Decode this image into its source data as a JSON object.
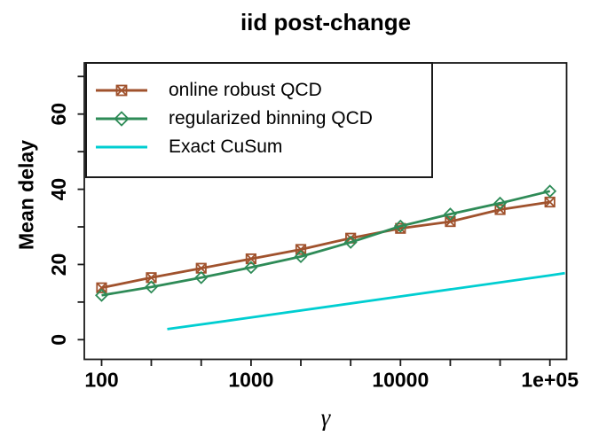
{
  "title": "iid post-change",
  "axes": {
    "x": {
      "label": "γ",
      "scale": "log",
      "ticks": [
        100,
        215,
        464,
        1000,
        2154,
        4642,
        10000,
        21544,
        46416,
        100000
      ],
      "tick_labels": [
        "100",
        "1000",
        "10000",
        "1e+05"
      ],
      "labeled_tick_indices": [
        0,
        3,
        6,
        9
      ]
    },
    "y": {
      "label": "Mean delay",
      "ticks": [
        0,
        10,
        20,
        30,
        40,
        50,
        60,
        70
      ],
      "tick_labels": [
        "0",
        "20",
        "40",
        "60"
      ],
      "labeled_tick_values": [
        0,
        20,
        40,
        60
      ]
    }
  },
  "legend": {
    "items": [
      {
        "label": "online robust QCD",
        "color": "#A0522D",
        "marker": "square-x"
      },
      {
        "label": "regularized binning QCD",
        "color": "#2E8B57",
        "marker": "diamond"
      },
      {
        "label": "Exact CuSum",
        "color": "#00CED1",
        "marker": "none"
      }
    ]
  },
  "chart_data": {
    "type": "line",
    "title": "iid post-change",
    "xlabel": "γ",
    "ylabel": "Mean delay",
    "x_scale": "log",
    "xlim": [
      77,
      128000
    ],
    "ylim": [
      0,
      70
    ],
    "grid": false,
    "legend_position": "top-left",
    "x": [
      100,
      215,
      464,
      1000,
      2154,
      4642,
      10000,
      21544,
      46416,
      100000
    ],
    "series": [
      {
        "name": "online robust QCD",
        "color": "#A0522D",
        "marker": "square-x",
        "values": [
          13.8,
          16.5,
          19.0,
          21.5,
          24.0,
          27.0,
          29.6,
          31.4,
          34.6,
          36.6
        ]
      },
      {
        "name": "regularized binning QCD",
        "color": "#2E8B57",
        "marker": "diamond",
        "values": [
          11.8,
          14.0,
          16.5,
          19.2,
          22.1,
          25.9,
          30.2,
          33.4,
          36.3,
          39.5
        ]
      },
      {
        "name": "Exact CuSum",
        "color": "#00CED1",
        "marker": "none",
        "x": [
          275,
          1000,
          10000,
          100000,
          126000
        ],
        "values": [
          2.8,
          5.9,
          11.5,
          17.1,
          17.7
        ]
      }
    ]
  }
}
